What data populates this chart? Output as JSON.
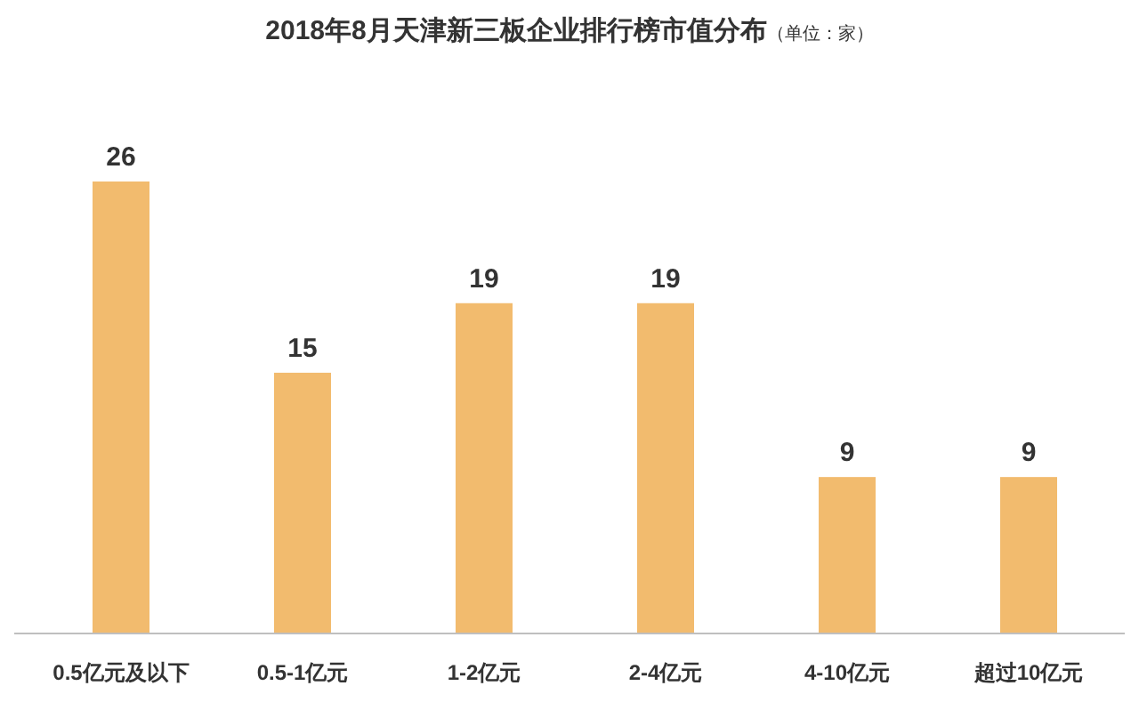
{
  "chart_data": {
    "type": "bar",
    "title": "2018年8月天津新三板企业排行榜市值分布",
    "subtitle": "（单位：家）",
    "categories": [
      "0.5亿元及以下",
      "0.5-1亿元",
      "1-2亿元",
      "2-4亿元",
      "4-10亿元",
      "超过10亿元"
    ],
    "values": [
      26,
      15,
      19,
      19,
      9,
      9
    ],
    "color": "#f2bb6e",
    "data_labels": true
  }
}
